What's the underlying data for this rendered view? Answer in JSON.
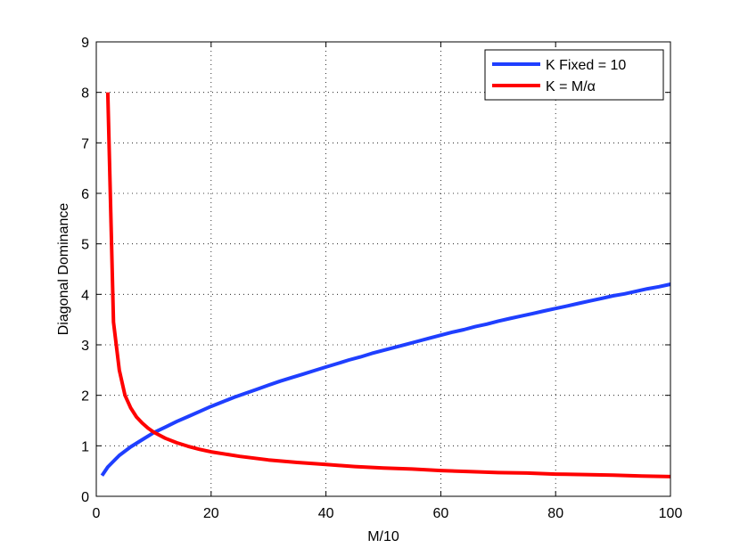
{
  "chart_data": {
    "type": "line",
    "title": "",
    "xlabel": "M/10",
    "ylabel": "Diagonal Dominance",
    "xlim": [
      0,
      100
    ],
    "ylim": [
      0,
      9
    ],
    "xticks": [
      0,
      20,
      40,
      60,
      80,
      100
    ],
    "yticks": [
      0,
      1,
      2,
      3,
      4,
      5,
      6,
      7,
      8,
      9
    ],
    "grid": true,
    "legend_position": "top-right",
    "series": [
      {
        "name": "K Fixed = 10",
        "color": "#1f3fff",
        "x": [
          1,
          2,
          4,
          6,
          8,
          10,
          12,
          14,
          16,
          18,
          20,
          22,
          24,
          26,
          28,
          30,
          32,
          34,
          36,
          38,
          40,
          42,
          44,
          46,
          48,
          50,
          52,
          54,
          56,
          58,
          60,
          62,
          64,
          66,
          68,
          70,
          72,
          74,
          76,
          78,
          80,
          82,
          84,
          86,
          88,
          90,
          92,
          94,
          96,
          98,
          100
        ],
        "y": [
          0.41,
          0.58,
          0.81,
          0.98,
          1.12,
          1.26,
          1.37,
          1.48,
          1.58,
          1.68,
          1.78,
          1.87,
          1.96,
          2.04,
          2.12,
          2.2,
          2.28,
          2.35,
          2.42,
          2.49,
          2.56,
          2.63,
          2.7,
          2.76,
          2.83,
          2.89,
          2.95,
          3.01,
          3.07,
          3.13,
          3.19,
          3.25,
          3.3,
          3.36,
          3.41,
          3.47,
          3.52,
          3.57,
          3.62,
          3.67,
          3.72,
          3.77,
          3.82,
          3.87,
          3.92,
          3.97,
          4.01,
          4.06,
          4.11,
          4.15,
          4.2
        ]
      },
      {
        "name": "K = M/α",
        "color": "#ff0000",
        "x": [
          2,
          3,
          4,
          5,
          6,
          7,
          8,
          9,
          10,
          12,
          14,
          16,
          18,
          20,
          25,
          30,
          35,
          40,
          45,
          50,
          55,
          60,
          65,
          70,
          75,
          80,
          85,
          90,
          95,
          100
        ],
        "y": [
          8.0,
          3.45,
          2.5,
          2.0,
          1.75,
          1.57,
          1.45,
          1.35,
          1.27,
          1.15,
          1.06,
          0.99,
          0.93,
          0.88,
          0.79,
          0.72,
          0.67,
          0.63,
          0.59,
          0.56,
          0.54,
          0.51,
          0.49,
          0.47,
          0.46,
          0.44,
          0.43,
          0.42,
          0.4,
          0.39
        ]
      }
    ]
  }
}
